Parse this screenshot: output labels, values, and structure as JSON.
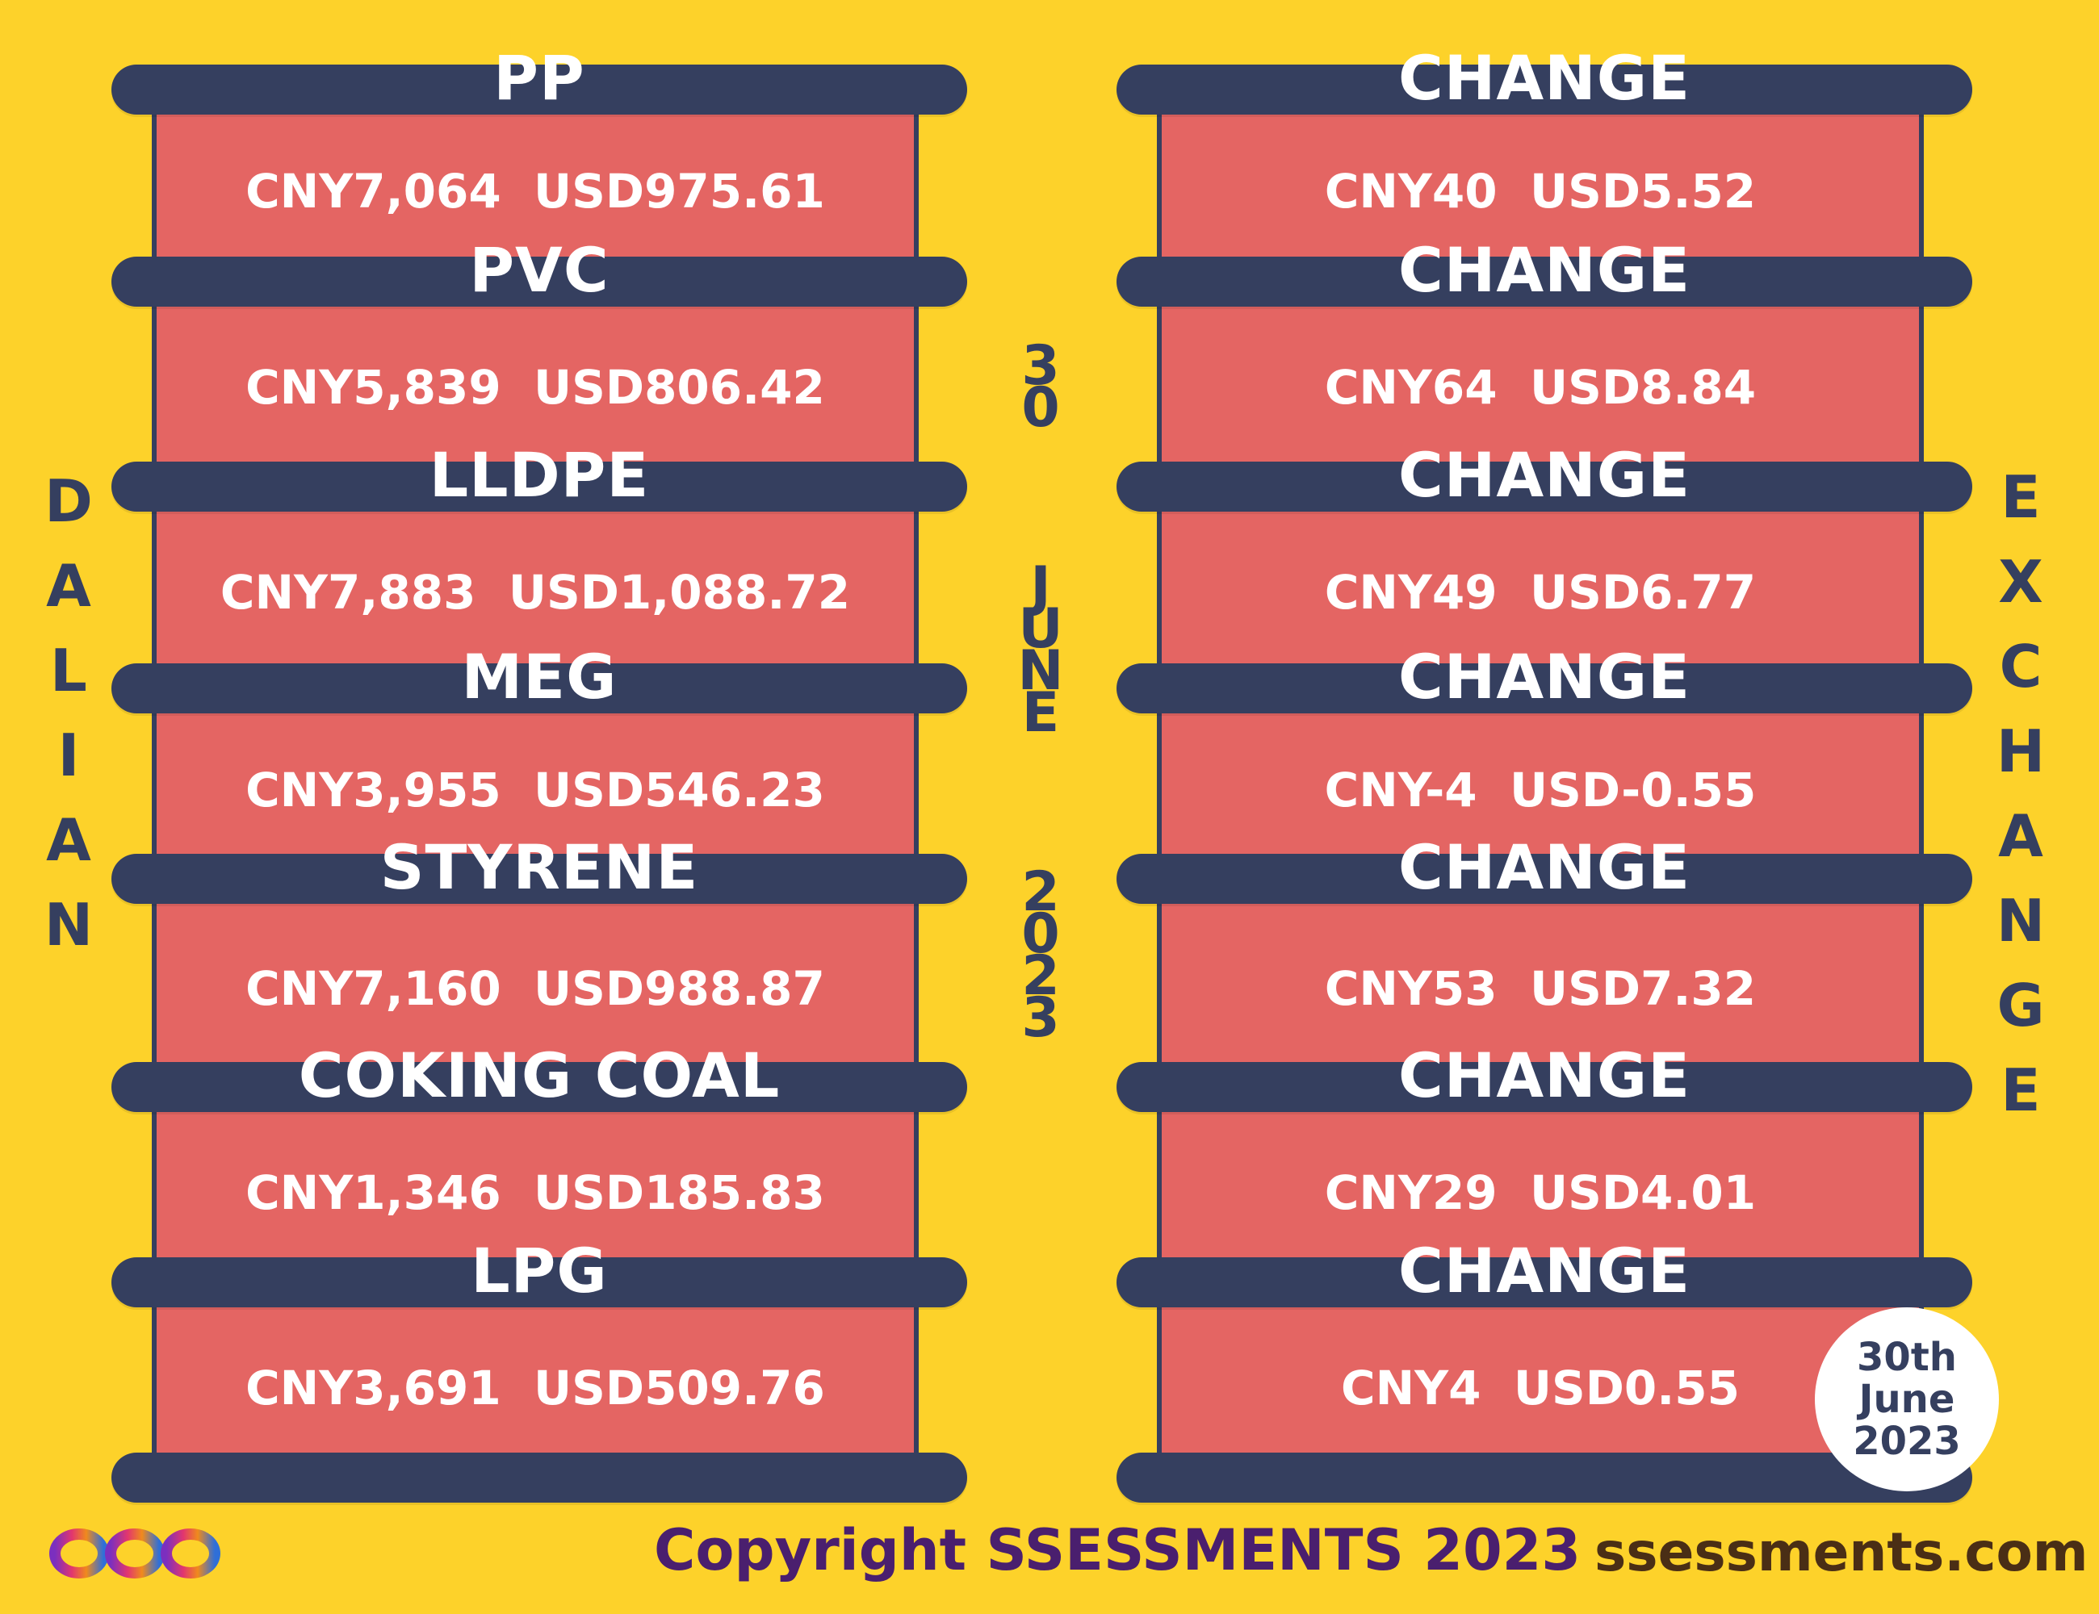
{
  "left_column": {
    "vertical_label": [
      "D",
      "A",
      "L",
      "I",
      "A",
      "N"
    ],
    "items": [
      {
        "name": "PP",
        "price": "CNY7,064  USD975.61"
      },
      {
        "name": "PVC",
        "price": "CNY5,839  USD806.42"
      },
      {
        "name": "LLDPE",
        "price": "CNY7,883  USD1,088.72"
      },
      {
        "name": "MEG",
        "price": "CNY3,955  USD546.23"
      },
      {
        "name": "STYRENE",
        "price": "CNY7,160  USD988.87"
      },
      {
        "name": "COKING COAL",
        "price": "CNY1,346  USD185.83"
      },
      {
        "name": "LPG",
        "price": "CNY3,691  USD509.76"
      }
    ]
  },
  "right_column": {
    "vertical_label": [
      "E",
      "X",
      "C",
      "H",
      "A",
      "N",
      "G",
      "E"
    ],
    "items": [
      {
        "name": "CHANGE",
        "price": "CNY40  USD5.52"
      },
      {
        "name": "CHANGE",
        "price": "CNY64  USD8.84"
      },
      {
        "name": "CHANGE",
        "price": "CNY49  USD6.77"
      },
      {
        "name": "CHANGE",
        "price": "CNY-4  USD-0.55"
      },
      {
        "name": "CHANGE",
        "price": "CNY53  USD7.32"
      },
      {
        "name": "CHANGE",
        "price": "CNY29  USD4.01"
      },
      {
        "name": "CHANGE",
        "price": "CNY4  USD0.55"
      }
    ]
  },
  "center_date": {
    "day": [
      "3",
      "0"
    ],
    "month": [
      "J",
      "U",
      "N",
      "E"
    ],
    "year": [
      "2",
      "0",
      "2",
      "3"
    ]
  },
  "date_badge": {
    "line1": "30th",
    "line2": "June",
    "line3": "2023"
  },
  "footer": {
    "copyright": "Copyright SSESSMENTS 2023",
    "website": "ssessments.com",
    "logo_icon": "infinity-loop-logo"
  },
  "colors": {
    "background": "#fdd22a",
    "bar": "#353f5f",
    "panel": "#e46563",
    "copyright_text": "#4a1f6e",
    "website_text": "#4a2e15"
  }
}
